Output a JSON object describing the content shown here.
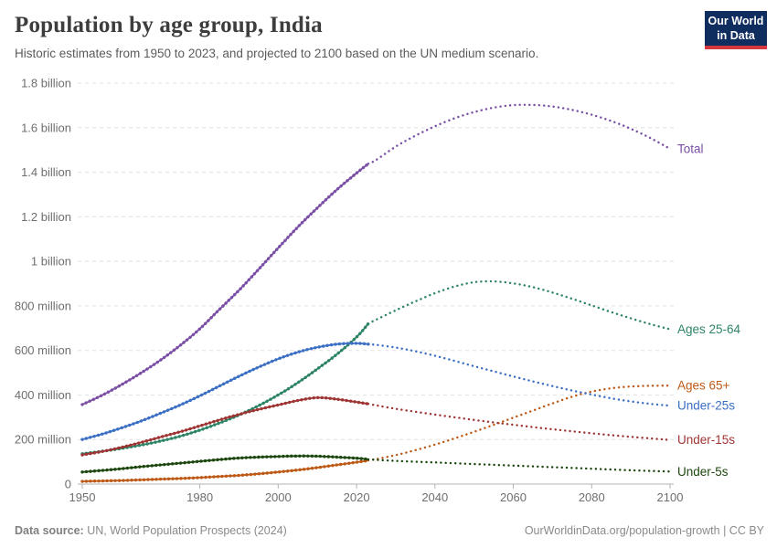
{
  "header": {
    "title": "Population by age group, India",
    "subtitle": "Historic estimates from 1950 to 2023, and projected to 2100 based on the UN medium scenario."
  },
  "logo": {
    "line1": "Our World",
    "line2": "in Data"
  },
  "colors": {
    "grid": "#e0e0e0",
    "axis": "#b3b3b3",
    "tick_label": "#6e6e6e",
    "logo_bg": "#0f2d5e",
    "logo_red": "#d4373e"
  },
  "footer": {
    "source_label": "Data source:",
    "source_value": " UN, World Population Prospects (2024)",
    "link": "OurWorldinData.org/population-growth | CC BY"
  },
  "chart_data": {
    "type": "line",
    "title": "Population by age group, India",
    "unit": "millions of people",
    "x_range": [
      1950,
      2100
    ],
    "x_ticks": [
      1950,
      1980,
      2000,
      2020,
      2040,
      2060,
      2080,
      2100
    ],
    "y_range": [
      0,
      1800
    ],
    "y_ticks": [
      {
        "value": 0,
        "label": "0"
      },
      {
        "value": 200,
        "label": "200 million"
      },
      {
        "value": 400,
        "label": "400 million"
      },
      {
        "value": 600,
        "label": "600 million"
      },
      {
        "value": 800,
        "label": "800 million"
      },
      {
        "value": 1000,
        "label": "1 billion"
      },
      {
        "value": 1200,
        "label": "1.2 billion"
      },
      {
        "value": 1400,
        "label": "1.4 billion"
      },
      {
        "value": 1600,
        "label": "1.6 billion"
      },
      {
        "value": 1800,
        "label": "1.8 billion"
      }
    ],
    "grid": true,
    "legend_position": "right-of-line-ends",
    "projection_start": 2023,
    "series": [
      {
        "id": "total",
        "name": "Total",
        "color": "#7a4fa5",
        "historic": [
          [
            1950,
            357
          ],
          [
            1955,
            398
          ],
          [
            1960,
            446
          ],
          [
            1965,
            499
          ],
          [
            1970,
            557
          ],
          [
            1975,
            623
          ],
          [
            1980,
            697
          ],
          [
            1985,
            784
          ],
          [
            1990,
            870
          ],
          [
            1995,
            964
          ],
          [
            2000,
            1060
          ],
          [
            2005,
            1154
          ],
          [
            2010,
            1240
          ],
          [
            2015,
            1322
          ],
          [
            2020,
            1396
          ],
          [
            2023,
            1438
          ]
        ],
        "projected": [
          [
            2023,
            1438
          ],
          [
            2025,
            1455
          ],
          [
            2030,
            1515
          ],
          [
            2035,
            1564
          ],
          [
            2040,
            1606
          ],
          [
            2045,
            1642
          ],
          [
            2050,
            1670
          ],
          [
            2055,
            1690
          ],
          [
            2060,
            1701
          ],
          [
            2065,
            1702
          ],
          [
            2070,
            1695
          ],
          [
            2075,
            1680
          ],
          [
            2080,
            1658
          ],
          [
            2085,
            1630
          ],
          [
            2090,
            1595
          ],
          [
            2095,
            1553
          ],
          [
            2100,
            1505
          ]
        ]
      },
      {
        "id": "ages-25-64",
        "name": "Ages 25-64",
        "color": "#2c8465",
        "historic": [
          [
            1950,
            136
          ],
          [
            1955,
            147
          ],
          [
            1960,
            160
          ],
          [
            1965,
            175
          ],
          [
            1970,
            193
          ],
          [
            1975,
            215
          ],
          [
            1980,
            242
          ],
          [
            1985,
            274
          ],
          [
            1990,
            310
          ],
          [
            1995,
            352
          ],
          [
            2000,
            400
          ],
          [
            2005,
            455
          ],
          [
            2010,
            517
          ],
          [
            2015,
            583
          ],
          [
            2020,
            660
          ],
          [
            2023,
            720
          ]
        ],
        "projected": [
          [
            2023,
            720
          ],
          [
            2025,
            738
          ],
          [
            2030,
            780
          ],
          [
            2035,
            820
          ],
          [
            2040,
            857
          ],
          [
            2045,
            887
          ],
          [
            2050,
            906
          ],
          [
            2055,
            910
          ],
          [
            2060,
            901
          ],
          [
            2065,
            884
          ],
          [
            2070,
            860
          ],
          [
            2075,
            832
          ],
          [
            2080,
            802
          ],
          [
            2085,
            772
          ],
          [
            2090,
            744
          ],
          [
            2095,
            718
          ],
          [
            2100,
            695
          ]
        ]
      },
      {
        "id": "ages-65-plus",
        "name": "Ages 65+",
        "color": "#be5915",
        "historic": [
          [
            1950,
            12
          ],
          [
            1955,
            14
          ],
          [
            1960,
            16
          ],
          [
            1965,
            19
          ],
          [
            1970,
            22
          ],
          [
            1975,
            25
          ],
          [
            1980,
            29
          ],
          [
            1985,
            34
          ],
          [
            1990,
            39
          ],
          [
            1995,
            46
          ],
          [
            2000,
            54
          ],
          [
            2005,
            63
          ],
          [
            2010,
            74
          ],
          [
            2015,
            86
          ],
          [
            2020,
            98
          ],
          [
            2023,
            106
          ]
        ],
        "projected": [
          [
            2023,
            106
          ],
          [
            2025,
            112
          ],
          [
            2030,
            130
          ],
          [
            2035,
            152
          ],
          [
            2040,
            177
          ],
          [
            2045,
            205
          ],
          [
            2050,
            235
          ],
          [
            2055,
            266
          ],
          [
            2060,
            298
          ],
          [
            2065,
            330
          ],
          [
            2070,
            362
          ],
          [
            2075,
            392
          ],
          [
            2080,
            415
          ],
          [
            2085,
            430
          ],
          [
            2090,
            438
          ],
          [
            2095,
            441
          ],
          [
            2100,
            442
          ]
        ]
      },
      {
        "id": "under-25s",
        "name": "Under-25s",
        "color": "#3b6fc4",
        "historic": [
          [
            1950,
            200
          ],
          [
            1955,
            224
          ],
          [
            1960,
            252
          ],
          [
            1965,
            283
          ],
          [
            1970,
            318
          ],
          [
            1975,
            355
          ],
          [
            1980,
            396
          ],
          [
            1985,
            440
          ],
          [
            1990,
            484
          ],
          [
            1995,
            525
          ],
          [
            2000,
            562
          ],
          [
            2005,
            592
          ],
          [
            2010,
            614
          ],
          [
            2015,
            628
          ],
          [
            2020,
            632
          ],
          [
            2023,
            628
          ]
        ],
        "projected": [
          [
            2023,
            628
          ],
          [
            2025,
            625
          ],
          [
            2030,
            613
          ],
          [
            2035,
            596
          ],
          [
            2040,
            576
          ],
          [
            2045,
            553
          ],
          [
            2050,
            529
          ],
          [
            2055,
            506
          ],
          [
            2060,
            483
          ],
          [
            2065,
            461
          ],
          [
            2070,
            440
          ],
          [
            2075,
            420
          ],
          [
            2080,
            402
          ],
          [
            2085,
            385
          ],
          [
            2090,
            371
          ],
          [
            2095,
            360
          ],
          [
            2100,
            352
          ]
        ]
      },
      {
        "id": "under-15s",
        "name": "Under-15s",
        "color": "#9e3433",
        "historic": [
          [
            1950,
            131
          ],
          [
            1955,
            146
          ],
          [
            1960,
            165
          ],
          [
            1965,
            187
          ],
          [
            1970,
            211
          ],
          [
            1975,
            235
          ],
          [
            1980,
            261
          ],
          [
            1985,
            288
          ],
          [
            1990,
            313
          ],
          [
            1995,
            335
          ],
          [
            2000,
            355
          ],
          [
            2005,
            375
          ],
          [
            2010,
            388
          ],
          [
            2015,
            381
          ],
          [
            2020,
            368
          ],
          [
            2023,
            360
          ]
        ],
        "projected": [
          [
            2023,
            360
          ],
          [
            2030,
            338
          ],
          [
            2040,
            312
          ],
          [
            2050,
            288
          ],
          [
            2060,
            266
          ],
          [
            2070,
            246
          ],
          [
            2080,
            228
          ],
          [
            2090,
            212
          ],
          [
            2100,
            198
          ]
        ]
      },
      {
        "id": "under-5s",
        "name": "Under-5s",
        "color": "#1c470e",
        "historic": [
          [
            1950,
            54
          ],
          [
            1955,
            61
          ],
          [
            1960,
            69
          ],
          [
            1965,
            78
          ],
          [
            1970,
            86
          ],
          [
            1975,
            94
          ],
          [
            1980,
            102
          ],
          [
            1985,
            110
          ],
          [
            1990,
            117
          ],
          [
            1995,
            121
          ],
          [
            2000,
            124
          ],
          [
            2005,
            126
          ],
          [
            2010,
            125
          ],
          [
            2015,
            121
          ],
          [
            2020,
            116
          ],
          [
            2023,
            111
          ]
        ],
        "projected": [
          [
            2023,
            111
          ],
          [
            2030,
            104
          ],
          [
            2040,
            97
          ],
          [
            2050,
            90
          ],
          [
            2060,
            83
          ],
          [
            2070,
            76
          ],
          [
            2080,
            69
          ],
          [
            2090,
            62
          ],
          [
            2100,
            56
          ]
        ]
      }
    ]
  }
}
